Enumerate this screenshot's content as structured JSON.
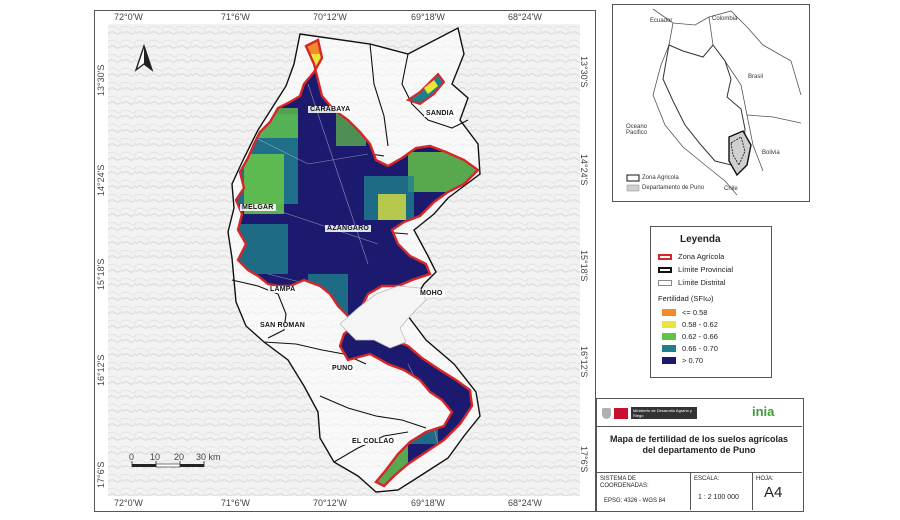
{
  "map": {
    "top_ticks": [
      "72°0'W",
      "71°6'W",
      "70°12'W",
      "69°18'W",
      "68°24'W"
    ],
    "bottom_ticks": [
      "72°0'W",
      "71°6'W",
      "70°12'W",
      "69°18'W",
      "68°24'W"
    ],
    "left_ticks": [
      "13°30'S",
      "14°24'S",
      "15°18'S",
      "16°12'S",
      "17°6'S"
    ],
    "right_ticks": [
      "13°30'S",
      "14°24'S",
      "15°18'S",
      "16°12'S",
      "17°6'S"
    ],
    "provinces": [
      "CARABAYA",
      "SANDIA",
      "MELGAR",
      "AZANGARO",
      "MOHO",
      "LAMPA",
      "SAN ROMAN",
      "PUNO",
      "EL COLLAO"
    ],
    "scale_ticks": [
      "0",
      "10",
      "20",
      "30 km"
    ],
    "north_symbol": "A"
  },
  "inset": {
    "labels": [
      "Ecuador",
      "Colombia",
      "Brasil",
      "Oceano Pacifico",
      "Bolivia",
      "Chile"
    ],
    "legend": [
      "Zona Agricola",
      "Departamento de Puno"
    ]
  },
  "legend": {
    "title": "Leyenda",
    "boundary_items": [
      {
        "label": "Zona Agrícola",
        "color": "#d62728"
      },
      {
        "label": "Límite Provincial",
        "color": "#111111"
      },
      {
        "label": "Límite Distrital",
        "color": "#888888"
      }
    ],
    "fertility_title": "Fertilidad (SFIω)",
    "classes": [
      {
        "label": "<= 0.58",
        "color": "#f28c28"
      },
      {
        "label": "0.58 - 0.62",
        "color": "#e9e53a"
      },
      {
        "label": "0.62 - 0.66",
        "color": "#63c24a"
      },
      {
        "label": "0.66 - 0.70",
        "color": "#1f7f8c"
      },
      {
        "label": "> 0.70",
        "color": "#1c1a6e"
      }
    ]
  },
  "titleblock": {
    "ministry": "Ministerio de Desarrollo Agrario y Riego",
    "inia_logo": "inia",
    "title": "Mapa de fertilidad de los suelos agrícolas del departamento de Puno",
    "crs_label": "SISTEMA DE COORDENADAS:",
    "crs_value": "EPSG: 4326 - WGS 84",
    "scale_label": "ESCALA:",
    "scale_value": "1 : 2 100 000",
    "sheet_label": "HOJA:",
    "sheet_value": "A4"
  }
}
